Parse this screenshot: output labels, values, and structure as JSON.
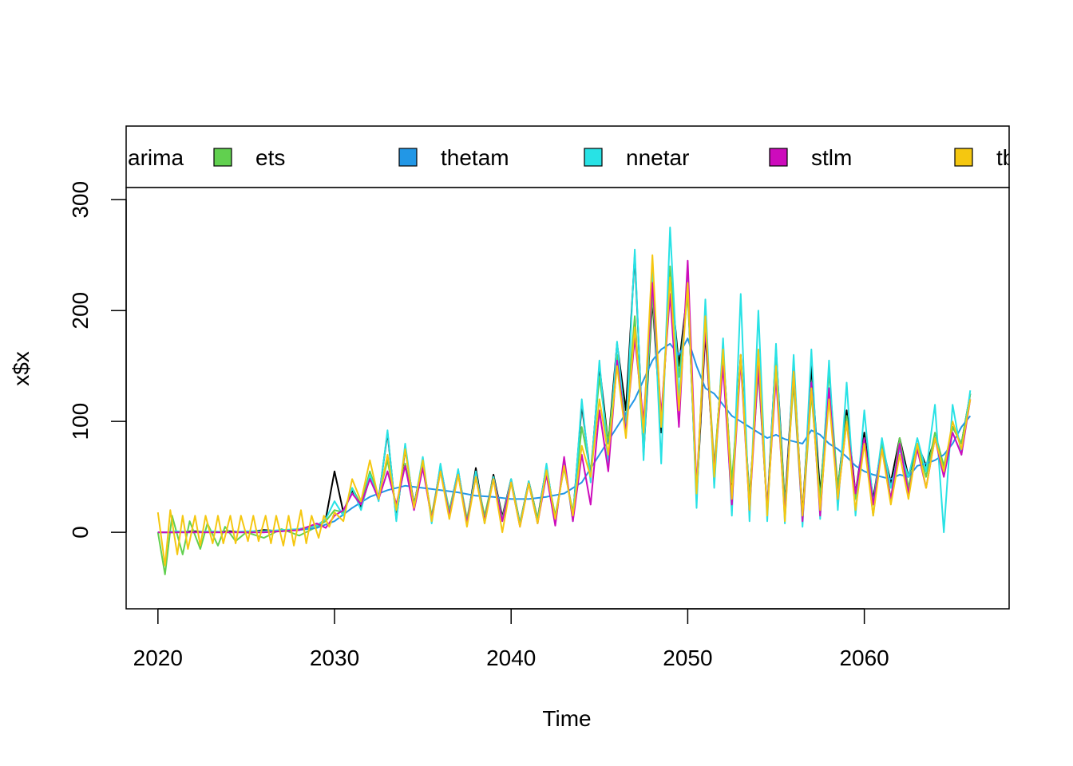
{
  "chart_data": {
    "type": "line",
    "title": "",
    "xlabel": "Time",
    "ylabel": "x$x",
    "xlim": [
      2018.2,
      2068.2
    ],
    "ylim": [
      -69,
      311
    ],
    "x_ticks": [
      2020,
      2030,
      2040,
      2050,
      2060
    ],
    "y_ticks": [
      0,
      100,
      200,
      300
    ],
    "grid": false,
    "legend_position": "top",
    "legend": [
      "arima",
      "ets",
      "thetam",
      "nnetar",
      "stlm",
      "tb"
    ],
    "series": [
      {
        "name": "arima",
        "color": "#000000",
        "x": [
          2020,
          2021,
          2022,
          2023,
          2024,
          2025,
          2026,
          2027,
          2028,
          2029,
          2029.5,
          2030,
          2030.5,
          2031,
          2031.5,
          2032,
          2032.5,
          2033,
          2033.5,
          2034,
          2034.5,
          2035,
          2035.5,
          2036,
          2036.5,
          2037,
          2037.5,
          2038,
          2038.5,
          2039,
          2039.5,
          2040,
          2040.5,
          2041,
          2041.5,
          2042,
          2042.5,
          2043,
          2043.5,
          2044,
          2044.5,
          2045,
          2045.5,
          2046,
          2046.5,
          2047,
          2047.5,
          2048,
          2048.5,
          2049,
          2049.5,
          2050,
          2050.5,
          2051,
          2051.5,
          2052,
          2052.5,
          2053,
          2053.5,
          2054,
          2054.5,
          2055,
          2055.5,
          2056,
          2056.5,
          2057,
          2057.5,
          2058,
          2058.5,
          2059,
          2059.5,
          2060,
          2060.5,
          2061,
          2061.5,
          2062,
          2062.5,
          2063,
          2063.5,
          2064,
          2064.5,
          2065,
          2065.5,
          2066
        ],
        "values": [
          0,
          0,
          1,
          0,
          1,
          0,
          2,
          1,
          3,
          6,
          12,
          55,
          18,
          38,
          22,
          50,
          30,
          90,
          12,
          75,
          25,
          64,
          12,
          60,
          18,
          56,
          8,
          58,
          10,
          52,
          14,
          48,
          8,
          46,
          12,
          60,
          10,
          62,
          14,
          115,
          50,
          150,
          80,
          170,
          110,
          250,
          70,
          210,
          90,
          235,
          150,
          220,
          30,
          180,
          55,
          165,
          40,
          160,
          30,
          150,
          20,
          165,
          25,
          150,
          15,
          150,
          35,
          130,
          40,
          110,
          35,
          90,
          30,
          80,
          45,
          85,
          50,
          80,
          60,
          85,
          55,
          95,
          80,
          125
        ]
      },
      {
        "name": "ets",
        "color": "#61D04F",
        "x": [
          2020,
          2020.4,
          2020.8,
          2021.4,
          2021.8,
          2022.4,
          2022.8,
          2023.4,
          2023.8,
          2024.4,
          2025,
          2026,
          2027,
          2028,
          2029,
          2029.5,
          2030,
          2030.5,
          2031,
          2031.5,
          2032,
          2032.5,
          2033,
          2033.5,
          2034,
          2034.5,
          2035,
          2035.5,
          2036,
          2036.5,
          2037,
          2037.5,
          2038,
          2038.5,
          2039,
          2039.5,
          2040,
          2040.5,
          2041,
          2041.5,
          2042,
          2042.5,
          2043,
          2043.5,
          2044,
          2044.5,
          2045,
          2045.5,
          2046,
          2046.5,
          2047,
          2047.5,
          2048,
          2048.5,
          2049,
          2049.5,
          2050,
          2050.5,
          2051,
          2051.5,
          2052,
          2052.5,
          2053,
          2053.5,
          2054,
          2054.5,
          2055,
          2055.5,
          2056,
          2056.5,
          2057,
          2057.5,
          2058,
          2058.5,
          2059,
          2059.5,
          2060,
          2060.5,
          2061,
          2061.5,
          2062,
          2062.5,
          2063,
          2063.5,
          2064,
          2064.5,
          2065,
          2065.5,
          2066
        ],
        "values": [
          0,
          -38,
          15,
          -20,
          10,
          -15,
          8,
          -12,
          5,
          -8,
          0,
          -5,
          3,
          -3,
          5,
          10,
          20,
          18,
          40,
          25,
          55,
          32,
          65,
          22,
          62,
          25,
          60,
          15,
          58,
          20,
          55,
          12,
          52,
          15,
          50,
          12,
          48,
          8,
          46,
          12,
          55,
          15,
          58,
          18,
          95,
          55,
          140,
          80,
          160,
          100,
          195,
          75,
          215,
          95,
          240,
          140,
          215,
          40,
          190,
          60,
          160,
          45,
          155,
          30,
          145,
          20,
          155,
          25,
          135,
          10,
          125,
          30,
          145,
          40,
          105,
          30,
          85,
          15,
          80,
          30,
          85,
          40,
          80,
          50,
          90,
          60,
          95,
          80,
          125
        ]
      },
      {
        "name": "thetam",
        "color": "#2297E6",
        "x": [
          2020,
          2021,
          2022,
          2023,
          2024,
          2025,
          2026,
          2027,
          2028,
          2029,
          2030,
          2031,
          2032,
          2033,
          2034,
          2035,
          2036,
          2037,
          2038,
          2039,
          2040,
          2041,
          2042,
          2043,
          2044,
          2045,
          2046,
          2047,
          2048,
          2048.5,
          2049,
          2049.5,
          2050,
          2050.5,
          2051,
          2051.5,
          2052,
          2052.5,
          2053,
          2053.5,
          2054,
          2054.5,
          2055,
          2055.5,
          2056,
          2056.5,
          2057,
          2057.5,
          2058,
          2058.5,
          2059,
          2059.5,
          2060,
          2060.5,
          2061,
          2061.5,
          2062,
          2062.5,
          2063,
          2063.5,
          2064,
          2064.5,
          2065,
          2065.5,
          2066
        ],
        "values": [
          0,
          0,
          0,
          0,
          0,
          0,
          0,
          1,
          2,
          4,
          10,
          22,
          32,
          38,
          42,
          40,
          38,
          36,
          33,
          32,
          30,
          30,
          32,
          35,
          45,
          70,
          95,
          120,
          155,
          165,
          170,
          160,
          175,
          150,
          130,
          125,
          115,
          105,
          100,
          95,
          90,
          85,
          88,
          84,
          82,
          80,
          92,
          88,
          80,
          75,
          68,
          60,
          55,
          52,
          50,
          48,
          52,
          50,
          60,
          62,
          65,
          70,
          80,
          95,
          105
        ]
      },
      {
        "name": "nnetar",
        "color": "#28E2E5",
        "x": [
          2020,
          2020.5,
          2021,
          2022,
          2023,
          2024,
          2025,
          2026,
          2027,
          2028,
          2029,
          2029.5,
          2030,
          2030.5,
          2031,
          2031.5,
          2032,
          2032.5,
          2033,
          2033.5,
          2034,
          2034.5,
          2035,
          2035.5,
          2036,
          2036.5,
          2037,
          2037.5,
          2038,
          2038.5,
          2039,
          2039.5,
          2040,
          2040.5,
          2041,
          2041.5,
          2042,
          2042.5,
          2043,
          2043.5,
          2044,
          2044.5,
          2045,
          2045.5,
          2046,
          2046.5,
          2047,
          2047.5,
          2048,
          2048.5,
          2049,
          2049.5,
          2050,
          2050.5,
          2051,
          2051.5,
          2052,
          2052.5,
          2053,
          2053.5,
          2054,
          2054.5,
          2055,
          2055.5,
          2056,
          2056.5,
          2057,
          2057.5,
          2058,
          2058.5,
          2059,
          2059.5,
          2060,
          2060.5,
          2061,
          2061.5,
          2062,
          2062.5,
          2063,
          2063.5,
          2064,
          2064.5,
          2065,
          2065.5,
          2066
        ],
        "values": [
          0,
          0,
          1,
          0,
          1,
          0,
          1,
          1,
          2,
          3,
          6,
          12,
          28,
          15,
          40,
          20,
          52,
          28,
          92,
          10,
          80,
          22,
          68,
          8,
          62,
          15,
          57,
          6,
          55,
          8,
          50,
          10,
          48,
          6,
          46,
          8,
          62,
          8,
          65,
          10,
          120,
          45,
          155,
          60,
          172,
          90,
          255,
          65,
          240,
          62,
          275,
          120,
          230,
          22,
          210,
          40,
          175,
          15,
          215,
          10,
          200,
          10,
          170,
          8,
          160,
          5,
          165,
          12,
          155,
          20,
          135,
          15,
          110,
          25,
          85,
          40,
          75,
          50,
          85,
          55,
          115,
          0,
          115,
          70,
          128
        ]
      },
      {
        "name": "stlm",
        "color": "#CD0BBC",
        "x": [
          2020,
          2021,
          2022,
          2023,
          2024,
          2025,
          2026,
          2027,
          2028,
          2029,
          2029.5,
          2030,
          2030.5,
          2031,
          2031.5,
          2032,
          2032.5,
          2033,
          2033.5,
          2034,
          2034.5,
          2035,
          2035.5,
          2036,
          2036.5,
          2037,
          2037.5,
          2038,
          2038.5,
          2039,
          2039.5,
          2040,
          2040.5,
          2041,
          2041.5,
          2042,
          2042.5,
          2043,
          2043.5,
          2044,
          2044.5,
          2045,
          2045.5,
          2046,
          2046.5,
          2047,
          2047.5,
          2048,
          2048.5,
          2049,
          2049.5,
          2050,
          2050.5,
          2051,
          2051.5,
          2052,
          2052.5,
          2053,
          2053.5,
          2054,
          2054.5,
          2055,
          2055.5,
          2056,
          2056.5,
          2057,
          2057.5,
          2058,
          2058.5,
          2059,
          2059.5,
          2060,
          2060.5,
          2061,
          2061.5,
          2062,
          2062.5,
          2063,
          2063.5,
          2064,
          2064.5,
          2065,
          2065.5,
          2066
        ],
        "values": [
          0,
          0,
          0,
          0,
          0,
          0,
          0,
          1,
          2,
          8,
          4,
          15,
          20,
          35,
          25,
          48,
          30,
          55,
          25,
          60,
          20,
          58,
          12,
          55,
          15,
          52,
          8,
          50,
          10,
          48,
          10,
          45,
          5,
          44,
          8,
          52,
          6,
          68,
          10,
          70,
          25,
          110,
          55,
          155,
          90,
          175,
          100,
          225,
          105,
          215,
          95,
          245,
          40,
          185,
          55,
          150,
          25,
          155,
          20,
          150,
          20,
          140,
          15,
          145,
          10,
          135,
          15,
          130,
          30,
          100,
          35,
          85,
          25,
          75,
          30,
          80,
          35,
          75,
          40,
          85,
          50,
          90,
          70,
          120
        ]
      },
      {
        "name": "tb",
        "color": "#F5C710",
        "x": [
          2020,
          2020.4,
          2020.7,
          2021.1,
          2021.4,
          2021.7,
          2022.1,
          2022.4,
          2022.7,
          2023.1,
          2023.4,
          2023.7,
          2024.1,
          2024.4,
          2024.7,
          2025.1,
          2025.4,
          2025.7,
          2026.1,
          2026.4,
          2026.7,
          2027.1,
          2027.4,
          2027.7,
          2028.1,
          2028.4,
          2028.7,
          2029.1,
          2029.4,
          2029.7,
          2030,
          2030.5,
          2031,
          2031.5,
          2032,
          2032.5,
          2033,
          2033.5,
          2034,
          2034.5,
          2035,
          2035.5,
          2036,
          2036.5,
          2037,
          2037.5,
          2038,
          2038.5,
          2039,
          2039.5,
          2040,
          2040.5,
          2041,
          2041.5,
          2042,
          2042.5,
          2043,
          2043.5,
          2044,
          2044.5,
          2045,
          2045.5,
          2046,
          2046.5,
          2047,
          2047.5,
          2048,
          2048.5,
          2049,
          2049.5,
          2050,
          2050.5,
          2051,
          2051.5,
          2052,
          2052.5,
          2053,
          2053.5,
          2054,
          2054.5,
          2055,
          2055.5,
          2056,
          2056.5,
          2057,
          2057.5,
          2058,
          2058.5,
          2059,
          2059.5,
          2060,
          2060.5,
          2061,
          2061.5,
          2062,
          2062.5,
          2063,
          2063.5,
          2064,
          2064.5,
          2065,
          2065.5,
          2066
        ],
        "values": [
          18,
          -30,
          20,
          -20,
          15,
          -15,
          15,
          -12,
          15,
          -10,
          15,
          -10,
          15,
          -10,
          15,
          -8,
          15,
          -8,
          15,
          -10,
          15,
          -12,
          15,
          -12,
          20,
          -10,
          15,
          -5,
          15,
          5,
          18,
          10,
          48,
          28,
          65,
          30,
          70,
          20,
          75,
          22,
          65,
          10,
          55,
          12,
          52,
          5,
          50,
          8,
          48,
          0,
          45,
          5,
          44,
          8,
          56,
          12,
          60,
          15,
          78,
          50,
          120,
          70,
          150,
          85,
          185,
          90,
          250,
          95,
          230,
          110,
          225,
          35,
          195,
          50,
          165,
          30,
          160,
          20,
          165,
          15,
          150,
          10,
          145,
          15,
          130,
          20,
          120,
          30,
          100,
          20,
          80,
          15,
          75,
          25,
          70,
          30,
          80,
          40,
          85,
          55,
          100,
          75,
          120
        ]
      }
    ]
  }
}
